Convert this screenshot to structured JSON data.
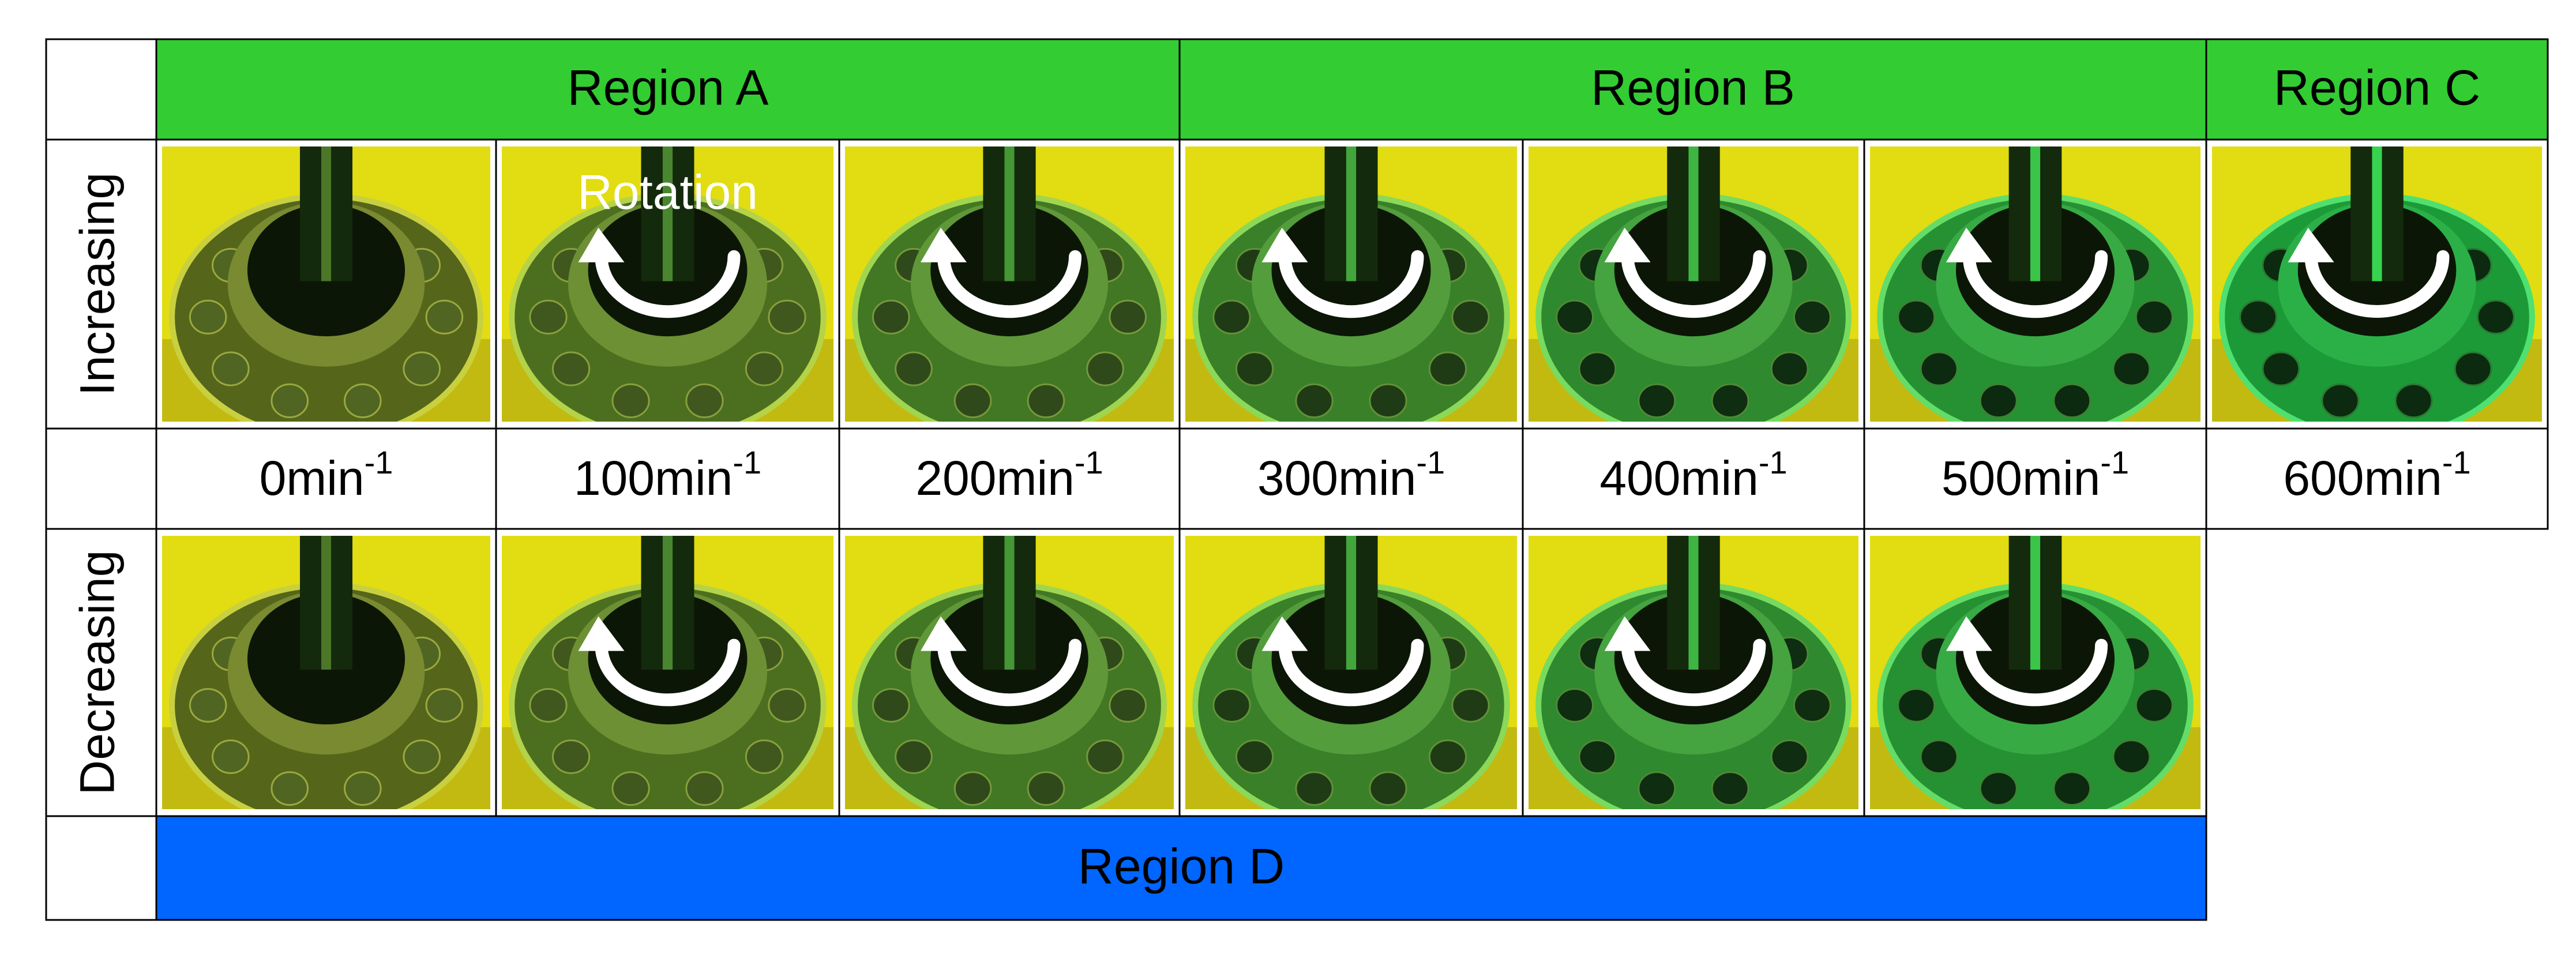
{
  "regions": [
    "Region A",
    "Region B",
    "Region C",
    "Region D"
  ],
  "row_labels": [
    "Increasing",
    "Decreasing"
  ],
  "speeds": [
    {
      "text": "0min",
      "sup": "-1"
    },
    {
      "text": "100min",
      "sup": "-1"
    },
    {
      "text": "200min",
      "sup": "-1"
    },
    {
      "text": "300min",
      "sup": "-1"
    },
    {
      "text": "400min",
      "sup": "-1"
    },
    {
      "text": "500min",
      "sup": "-1"
    },
    {
      "text": "600min",
      "sup": "-1"
    }
  ],
  "annotation": "Rotation"
}
